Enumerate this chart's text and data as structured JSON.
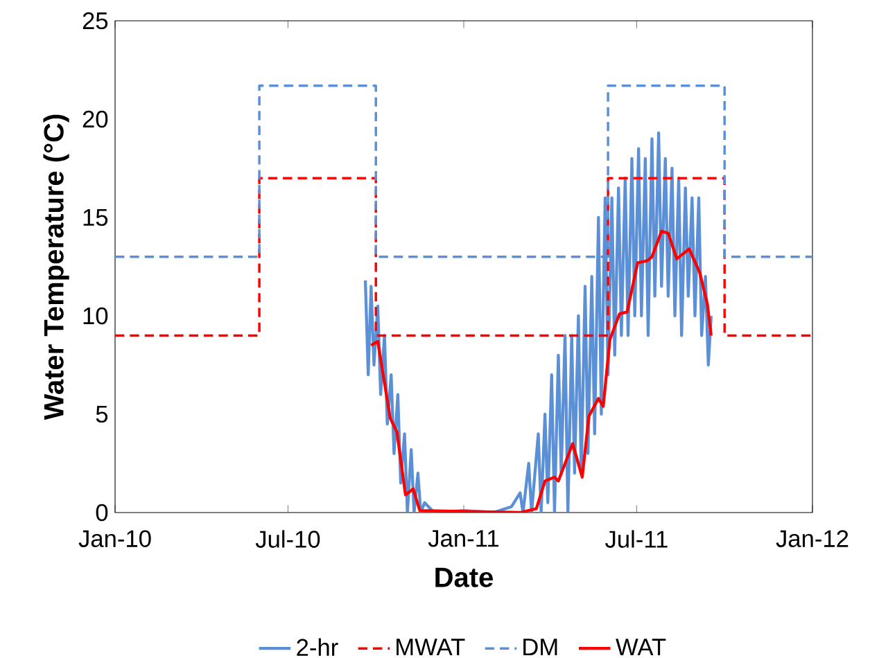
{
  "chart_data": {
    "type": "line",
    "xlabel": "Date",
    "ylabel": "Water Temperature (°C)",
    "xlim": [
      "2010-01-01",
      "2012-01-01"
    ],
    "xticks": [
      {
        "value": "2010-01-01",
        "label": "Jan-10"
      },
      {
        "value": "2010-07-01",
        "label": "Jul-10"
      },
      {
        "value": "2011-01-01",
        "label": "Jan-11"
      },
      {
        "value": "2011-07-01",
        "label": "Jul-11"
      },
      {
        "value": "2012-01-01",
        "label": "Jan-12"
      }
    ],
    "ylim": [
      0,
      25
    ],
    "yticks": [
      0,
      5,
      10,
      15,
      20,
      25
    ],
    "legend": "bottom",
    "series": [
      {
        "name": "2-hr",
        "color": "#5b8fd6",
        "line_style": "solid",
        "x": [
          "2010-09-20",
          "2010-09-23",
          "2010-09-26",
          "2010-09-29",
          "2010-10-03",
          "2010-10-06",
          "2010-10-10",
          "2010-10-13",
          "2010-10-17",
          "2010-10-20",
          "2010-10-24",
          "2010-10-27",
          "2010-10-31",
          "2010-11-03",
          "2010-11-07",
          "2010-11-10",
          "2010-11-14",
          "2010-11-17",
          "2010-11-21",
          "2010-12-01",
          "2011-01-01",
          "2011-02-01",
          "2011-02-20",
          "2011-03-01",
          "2011-03-04",
          "2011-03-10",
          "2011-03-13",
          "2011-03-20",
          "2011-03-23",
          "2011-03-27",
          "2011-03-30",
          "2011-04-03",
          "2011-04-06",
          "2011-04-10",
          "2011-04-13",
          "2011-04-17",
          "2011-04-20",
          "2011-04-24",
          "2011-04-27",
          "2011-05-01",
          "2011-05-04",
          "2011-05-08",
          "2011-05-11",
          "2011-05-15",
          "2011-05-18",
          "2011-05-22",
          "2011-05-25",
          "2011-05-29",
          "2011-06-01",
          "2011-06-05",
          "2011-06-08",
          "2011-06-12",
          "2011-06-15",
          "2011-06-19",
          "2011-06-22",
          "2011-06-26",
          "2011-06-29",
          "2011-07-03",
          "2011-07-06",
          "2011-07-10",
          "2011-07-13",
          "2011-07-17",
          "2011-07-20",
          "2011-07-24",
          "2011-07-27",
          "2011-07-31",
          "2011-08-03",
          "2011-08-07",
          "2011-08-10",
          "2011-08-14",
          "2011-08-17",
          "2011-08-21",
          "2011-08-24",
          "2011-08-28",
          "2011-08-31",
          "2011-09-04",
          "2011-09-07",
          "2011-09-11",
          "2011-09-14",
          "2011-09-17"
        ],
        "values": [
          11.8,
          7,
          11.5,
          7.5,
          10.5,
          6,
          9,
          4.5,
          7,
          3,
          6,
          1.5,
          4,
          0,
          3.2,
          0,
          2,
          0,
          0.5,
          0,
          0.1,
          0,
          0.3,
          1,
          0,
          2.5,
          0,
          4,
          0,
          5,
          0.5,
          7,
          0,
          8,
          2,
          9,
          0,
          9,
          2,
          10,
          2,
          11.5,
          3,
          12,
          4,
          15,
          5,
          16,
          7,
          16,
          8,
          16.5,
          9,
          17,
          9,
          18,
          10,
          18.5,
          10,
          18,
          9,
          19,
          11,
          19.3,
          11.5,
          18,
          11,
          17.5,
          10,
          17,
          9,
          16.5,
          11,
          16,
          10,
          16,
          9,
          12,
          7.5,
          10
        ]
      },
      {
        "name": "MWAT",
        "type": "step",
        "color": "#ff0000",
        "line_style": "dashed",
        "x": [
          "2010-01-01",
          "2010-06-01",
          "2010-10-01",
          "2011-06-01",
          "2011-10-01",
          "2012-01-01"
        ],
        "values": [
          9,
          17,
          9,
          17,
          9,
          9
        ]
      },
      {
        "name": "DM",
        "type": "step",
        "color": "#5b8fd6",
        "line_style": "dashed",
        "x": [
          "2010-01-01",
          "2010-06-01",
          "2010-10-01",
          "2011-06-01",
          "2011-10-01",
          "2012-01-01"
        ],
        "values": [
          13,
          21.7,
          13,
          21.7,
          13,
          13
        ]
      },
      {
        "name": "WAT",
        "color": "#ff0000",
        "line_style": "solid",
        "x": [
          "2010-09-26",
          "2010-10-03",
          "2010-10-16",
          "2010-10-23",
          "2010-11-01",
          "2010-11-09",
          "2010-11-16",
          "2011-03-01",
          "2011-03-18",
          "2011-03-27",
          "2011-04-06",
          "2011-04-10",
          "2011-04-25",
          "2011-05-05",
          "2011-05-12",
          "2011-05-22",
          "2011-05-27",
          "2011-06-03",
          "2011-06-13",
          "2011-06-21",
          "2011-07-02",
          "2011-07-12",
          "2011-07-17",
          "2011-07-27",
          "2011-08-03",
          "2011-08-12",
          "2011-08-25",
          "2011-09-05",
          "2011-09-13",
          "2011-09-17"
        ],
        "values": [
          8.5,
          8.7,
          4.8,
          4.1,
          0.9,
          1.2,
          0.1,
          0,
          0.2,
          1.6,
          1.8,
          1.6,
          3.5,
          1.8,
          4.9,
          5.8,
          5.4,
          8.8,
          10.1,
          10.2,
          12.7,
          12.8,
          13,
          14.3,
          14.2,
          12.9,
          13.4,
          12.2,
          10.6,
          9
        ]
      }
    ]
  }
}
